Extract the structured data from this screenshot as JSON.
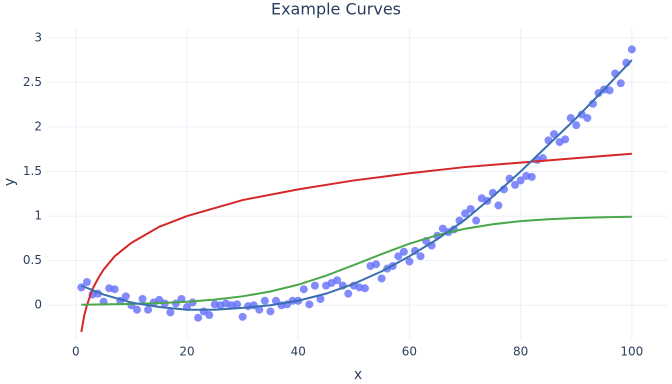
{
  "chart_data": {
    "type": "scatter",
    "title": "Example Curves",
    "x_label": "x",
    "y_label": "y",
    "xlim": [
      -5,
      106.5
    ],
    "ylim": [
      -0.39,
      3.11
    ],
    "xticks": [
      0,
      20,
      40,
      60,
      80,
      100
    ],
    "yticks": [
      0,
      0.5,
      1,
      1.5,
      2,
      2.5,
      3
    ],
    "grid": true,
    "series": [
      {
        "mode": "markers",
        "color": "#636efa",
        "x": [
          1,
          2,
          3,
          4,
          5,
          6,
          7,
          8,
          9,
          10,
          11,
          12,
          13,
          14,
          15,
          16,
          17,
          18,
          19,
          20,
          21,
          22,
          23,
          24,
          25,
          26,
          27,
          28,
          29,
          30,
          31,
          32,
          33,
          34,
          35,
          36,
          37,
          38,
          39,
          40,
          41,
          42,
          43,
          44,
          45,
          46,
          47,
          48,
          49,
          50,
          51,
          52,
          53,
          54,
          55,
          56,
          57,
          58,
          59,
          60,
          61,
          62,
          63,
          64,
          65,
          66,
          67,
          68,
          69,
          70,
          71,
          72,
          73,
          74,
          75,
          76,
          77,
          78,
          79,
          80,
          81,
          82,
          83,
          84,
          85,
          86,
          87,
          88,
          89,
          90,
          91,
          92,
          93,
          94,
          95,
          96,
          97,
          98,
          99,
          100
        ],
        "values": [
          0.2,
          0.26,
          0.12,
          0.13,
          0.04,
          0.19,
          0.18,
          0.05,
          0.1,
          0.0,
          -0.05,
          0.07,
          -0.05,
          0.03,
          0.06,
          0.02,
          -0.08,
          0.02,
          0.07,
          -0.02,
          0.03,
          -0.14,
          -0.07,
          -0.11,
          0.01,
          0.0,
          0.02,
          0.0,
          0.01,
          -0.13,
          -0.01,
          0.0,
          -0.05,
          0.05,
          -0.07,
          0.05,
          0.0,
          0.01,
          0.05,
          0.05,
          0.18,
          0.01,
          0.22,
          0.07,
          0.22,
          0.25,
          0.28,
          0.22,
          0.13,
          0.22,
          0.2,
          0.19,
          0.44,
          0.46,
          0.3,
          0.41,
          0.44,
          0.55,
          0.6,
          0.49,
          0.61,
          0.55,
          0.72,
          0.67,
          0.78,
          0.86,
          0.82,
          0.85,
          0.95,
          1.03,
          1.08,
          0.95,
          1.2,
          1.17,
          1.26,
          1.12,
          1.3,
          1.42,
          1.35,
          1.4,
          1.45,
          1.44,
          1.63,
          1.65,
          1.85,
          1.92,
          1.83,
          1.86,
          2.1,
          2.02,
          2.14,
          2.1,
          2.26,
          2.38,
          2.42,
          2.41,
          2.6,
          2.49,
          2.72,
          2.87
        ]
      },
      {
        "mode": "lines",
        "color": "#d62728",
        "x": [
          1,
          1.5,
          2,
          3,
          4,
          5,
          7,
          10,
          15,
          20,
          30,
          40,
          50,
          60,
          70,
          80,
          90,
          100
        ],
        "values": [
          -0.3,
          -0.12,
          0.0,
          0.18,
          0.3,
          0.4,
          0.55,
          0.7,
          0.88,
          1.0,
          1.18,
          1.3,
          1.4,
          1.48,
          1.55,
          1.6,
          1.65,
          1.7
        ]
      },
      {
        "mode": "lines",
        "color": "#4aa84a",
        "x": [
          1,
          5,
          10,
          15,
          20,
          25,
          30,
          35,
          40,
          45,
          50,
          55,
          60,
          65,
          70,
          75,
          80,
          85,
          90,
          95,
          100
        ],
        "values": [
          0.006,
          0.009,
          0.015,
          0.024,
          0.039,
          0.063,
          0.1,
          0.154,
          0.231,
          0.332,
          0.45,
          0.574,
          0.69,
          0.786,
          0.858,
          0.909,
          0.943,
          0.964,
          0.978,
          0.987,
          0.992
        ]
      },
      {
        "mode": "lines",
        "color": "#3a6fb0",
        "x": [
          1,
          5,
          10,
          15,
          20,
          25,
          30,
          35,
          40,
          45,
          50,
          55,
          60,
          65,
          70,
          75,
          80,
          85,
          90,
          95,
          100
        ],
        "values": [
          0.22,
          0.12,
          0.03,
          -0.02,
          -0.05,
          -0.05,
          -0.03,
          0.0,
          0.05,
          0.13,
          0.24,
          0.38,
          0.55,
          0.74,
          0.96,
          1.22,
          1.5,
          1.8,
          2.1,
          2.42,
          2.75
        ]
      }
    ]
  }
}
